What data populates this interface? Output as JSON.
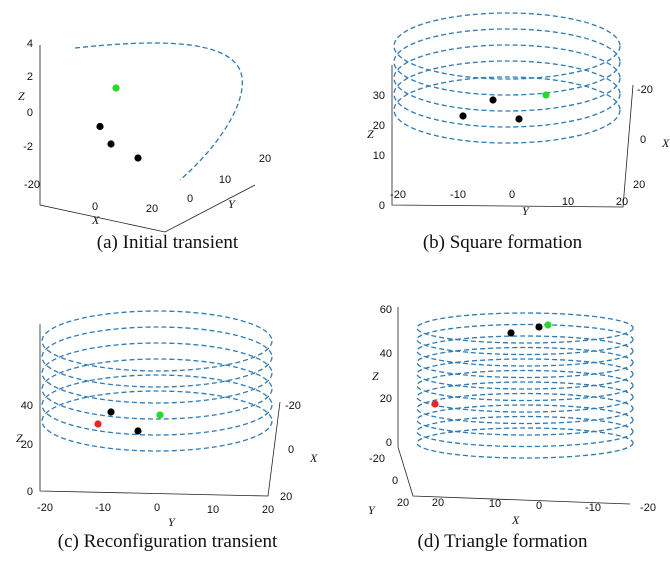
{
  "panels": [
    {
      "caption": "(a) Initial transient",
      "chart_data": {
        "type": "scatter3d",
        "xlabel": "X",
        "ylabel": "Y",
        "zlabel": "Z",
        "x_ticks": [
          "-20",
          "0",
          "20"
        ],
        "y_ticks": [
          "0",
          "10",
          "20"
        ],
        "z_ticks": [
          "4",
          "2",
          "0",
          "-2"
        ],
        "trajectory": "open arc (blue dashed)",
        "points": [
          {
            "color": "#22dd22",
            "z": 1.6
          },
          {
            "color": "#000000",
            "z": -0.6
          },
          {
            "color": "#000000",
            "z": -1.6
          },
          {
            "color": "#000000",
            "z": -2.4
          }
        ]
      }
    },
    {
      "caption": "(b) Square formation",
      "chart_data": {
        "type": "scatter3d",
        "xlabel": "X",
        "ylabel": "Y",
        "zlabel": "Z",
        "x_ticks": [
          "-20",
          "0",
          "20"
        ],
        "y_ticks": [
          "-20",
          "-10",
          "0",
          "10",
          "20"
        ],
        "z_ticks": [
          "30",
          "20",
          "10",
          "0"
        ],
        "trajectory": "helix, 5 loops",
        "points": [
          {
            "color": "#22dd22"
          },
          {
            "color": "#000000"
          },
          {
            "color": "#000000"
          },
          {
            "color": "#000000"
          }
        ]
      }
    },
    {
      "caption": "(c) Reconfiguration transient",
      "chart_data": {
        "type": "scatter3d",
        "xlabel": "X",
        "ylabel": "Y",
        "zlabel": "Z",
        "x_ticks": [
          "-20",
          "0",
          "20"
        ],
        "y_ticks": [
          "-20",
          "-10",
          "0",
          "10",
          "20"
        ],
        "z_ticks": [
          "40",
          "20",
          "0"
        ],
        "trajectory": "helix, 6 loops",
        "points": [
          {
            "color": "#22dd22"
          },
          {
            "color": "#ee2222"
          },
          {
            "color": "#000000"
          },
          {
            "color": "#000000"
          }
        ]
      }
    },
    {
      "caption": "(d) Triangle formation",
      "chart_data": {
        "type": "scatter3d",
        "xlabel": "X",
        "ylabel": "Y",
        "zlabel": "Z",
        "x_ticks": [
          "20",
          "10",
          "0",
          "-10",
          "-20"
        ],
        "y_ticks": [
          "-20",
          "0",
          "20"
        ],
        "z_ticks": [
          "60",
          "40",
          "20",
          "0"
        ],
        "trajectory": "helix, 11 loops",
        "points": [
          {
            "color": "#22dd22"
          },
          {
            "color": "#000000"
          },
          {
            "color": "#000000"
          },
          {
            "color": "#ee2222"
          }
        ]
      }
    }
  ]
}
